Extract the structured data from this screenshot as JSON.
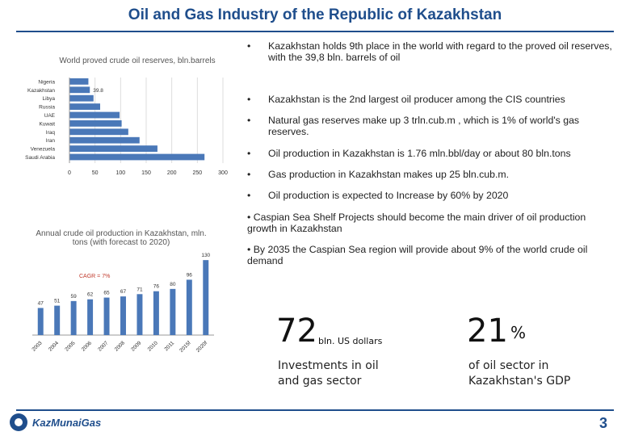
{
  "page": {
    "title": "Oil and Gas Industry of the Republic of Kazakhstan",
    "page_number": "3",
    "logo_text": "KazMunaiGas",
    "accent": "#1f4e8c"
  },
  "chart_data": [
    {
      "type": "bar",
      "orientation": "horizontal",
      "title": "World proved crude oil reserves, bln.barrels",
      "categories": [
        "Nigeria",
        "Kazakhstan",
        "Libya",
        "Russia",
        "UAE",
        "Kuwait",
        "Iraq",
        "Iran",
        "Venezuela",
        "Saudi Arabia"
      ],
      "values": [
        37,
        39.8,
        47,
        60,
        98,
        102,
        115,
        137,
        172,
        264
      ],
      "data_labels": {
        "Kazakhstan": "39.8"
      },
      "xlim": [
        0,
        300
      ],
      "xticks": [
        0,
        50,
        100,
        150,
        200,
        250,
        300
      ],
      "color": "#4a78b8",
      "grid": true
    },
    {
      "type": "bar",
      "title": "Annual crude oil production in Kazakhstan, mln. tons (with forecast to 2020)",
      "categories": [
        "2003",
        "2004",
        "2005",
        "2006",
        "2007",
        "2008",
        "2009",
        "2010",
        "2011",
        "2015f",
        "2020f"
      ],
      "values": [
        47,
        51,
        59,
        62,
        65,
        67,
        71,
        76,
        80,
        96,
        130
      ],
      "ylim": [
        0,
        140
      ],
      "annotation": "CAGR = 7%",
      "color": "#4a78b8"
    }
  ],
  "bullets": [
    "Kazakhstan holds 9th place in the world with regard to the proved oil reserves, with the 39,8 bln. barrels of oil",
    "Kazakhstan is the 2nd largest oil producer among  the CIS countries",
    "Natural gas reserves make up 3 trln.cub.m , which is 1% of world's gas reserves.",
    "Oil production in Kazakhstan is 1.76 mln.bbl/day or about 80 bln.tons",
    "Gas production in Kazakhstan makes up 25 bln.cub.m.",
    "Oil production is expected to Increase by 60% by 2020",
    "Caspian Sea Shelf Projects should become the main driver of oil production growth in Kazakhstan",
    "By 2035 the Caspian Sea region will provide about 9% of the world crude oil demand"
  ],
  "stats": [
    {
      "value": "72",
      "unit": "bln. US dollars",
      "caption": "Investments in oil and gas sector"
    },
    {
      "value": "21",
      "unit": "%",
      "caption": "of oil sector in Kazakhstan's GDP"
    }
  ]
}
